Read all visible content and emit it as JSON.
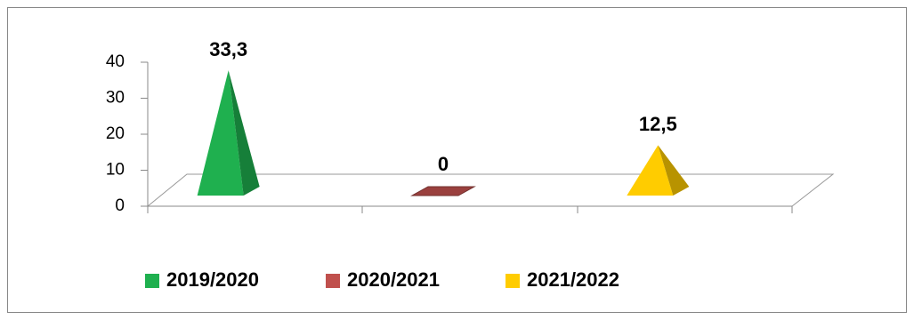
{
  "chart_data": {
    "type": "pyramid",
    "series": [
      {
        "name": "2019/2020",
        "color": "#1fb04f",
        "values": [
          33.3
        ],
        "value_labels": [
          "33,3"
        ]
      },
      {
        "name": "2020/2021",
        "color": "#c0504d",
        "values": [
          0
        ],
        "value_labels": [
          "0"
        ]
      },
      {
        "name": "2021/2022",
        "color": "#ffcc00",
        "values": [
          12.5
        ],
        "value_labels": [
          "12,5"
        ]
      }
    ],
    "ylim": [
      0,
      40
    ],
    "yticks": [
      0,
      10,
      20,
      30,
      40
    ],
    "legend": "bottom"
  }
}
